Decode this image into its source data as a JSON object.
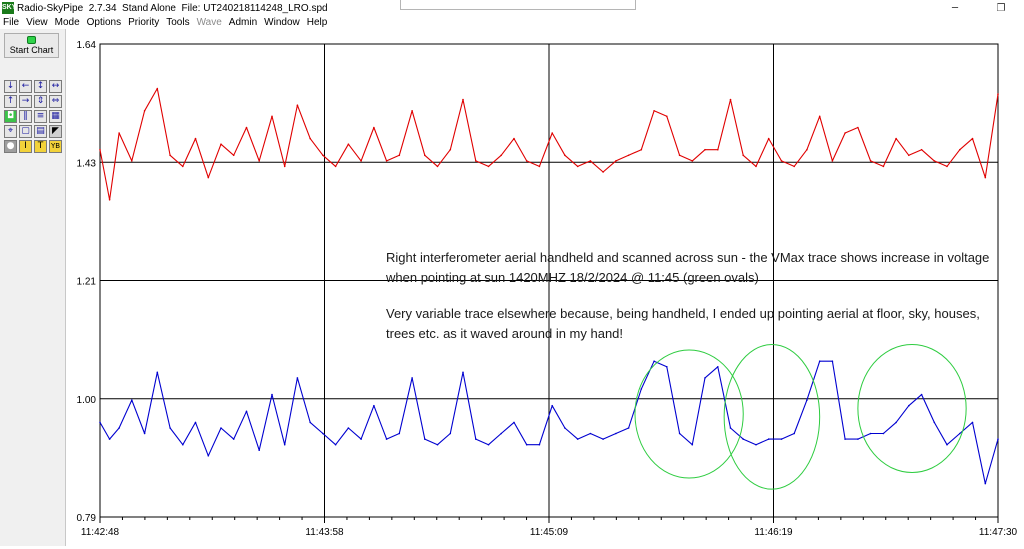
{
  "window": {
    "app_icon": "SKY",
    "title": "Radio-SkyPipe  2.7.34  Stand Alone  File: UT240218114248_LRO.spd",
    "minimize_icon": "minimize-icon",
    "restore_icon": "restore-icon",
    "minimize_glyph": "─",
    "restore_glyph": "❐"
  },
  "menu": [
    {
      "label": "File",
      "enabled": true
    },
    {
      "label": "View",
      "enabled": true
    },
    {
      "label": "Mode",
      "enabled": true
    },
    {
      "label": "Options",
      "enabled": true
    },
    {
      "label": "Priority",
      "enabled": true
    },
    {
      "label": "Tools",
      "enabled": true
    },
    {
      "label": "Wave",
      "enabled": false
    },
    {
      "label": "Admin",
      "enabled": true
    },
    {
      "label": "Window",
      "enabled": true
    },
    {
      "label": "Help",
      "enabled": true
    }
  ],
  "toolbar": {
    "start_chart_label": "Start Chart",
    "buttons": [
      {
        "name": "arrow-down-icon",
        "glyph": "↓",
        "style": ""
      },
      {
        "name": "arrow-left-icon",
        "glyph": "←",
        "style": ""
      },
      {
        "name": "arrows-vertical-icon",
        "glyph": "↕",
        "style": ""
      },
      {
        "name": "arrows-horizontal-icon",
        "glyph": "↔",
        "style": ""
      },
      {
        "name": "arrow-up-icon",
        "glyph": "↑",
        "style": ""
      },
      {
        "name": "arrow-right-icon",
        "glyph": "→",
        "style": ""
      },
      {
        "name": "compress-vertical-icon",
        "glyph": "⇕",
        "style": ""
      },
      {
        "name": "compress-horizontal-icon",
        "glyph": "⇔",
        "style": ""
      },
      {
        "name": "record-icon",
        "glyph": "◘",
        "style": "green"
      },
      {
        "name": "pause-icon",
        "glyph": "‖",
        "style": ""
      },
      {
        "name": "list-icon",
        "glyph": "≡",
        "style": ""
      },
      {
        "name": "grid-icon",
        "glyph": "▦",
        "style": ""
      },
      {
        "name": "crosshair-icon",
        "glyph": "⌖",
        "style": ""
      },
      {
        "name": "frame-icon",
        "glyph": "▢",
        "style": ""
      },
      {
        "name": "clipboard-icon",
        "glyph": "▤",
        "style": ""
      },
      {
        "name": "flag-icon",
        "glyph": "◤",
        "style": "dark"
      },
      {
        "name": "circle-icon",
        "glyph": "●",
        "style": "grey"
      },
      {
        "name": "info-icon",
        "glyph": "I",
        "style": "yellow"
      },
      {
        "name": "text-icon",
        "glyph": "T",
        "style": "yellow"
      },
      {
        "name": "yb-icon",
        "glyph": "YB",
        "style": "yellow"
      }
    ]
  },
  "chart_data": {
    "type": "line",
    "title": "",
    "xlabel": "",
    "ylabel": "",
    "y_ticks": [
      "1.64",
      "1.43",
      "1.21",
      "1.00",
      "0.79"
    ],
    "ylim": [
      0.79,
      1.64
    ],
    "x_ticks": [
      "11:42:48",
      "11:43:58",
      "11:45:09",
      "11:46:19",
      "11:47:30"
    ],
    "xlim_seconds_after_start": [
      0,
      282
    ],
    "grid": true,
    "series": [
      {
        "color": "#e00000",
        "x": [
          0,
          3,
          6,
          10,
          14,
          18,
          22,
          26,
          30,
          34,
          38,
          42,
          46,
          50,
          54,
          58,
          62,
          66,
          70,
          74,
          78,
          82,
          86,
          90,
          94,
          98,
          102,
          106,
          110,
          114,
          118,
          122,
          126,
          130,
          134,
          138,
          142,
          146,
          150,
          154,
          158,
          162,
          166,
          170,
          174,
          178,
          182,
          186,
          190,
          194,
          198,
          202,
          206,
          210,
          214,
          218,
          222,
          226,
          230,
          234,
          238,
          242,
          246,
          250,
          254,
          258,
          262,
          266,
          270,
          274,
          278,
          282
        ],
        "values": [
          1.45,
          1.36,
          1.48,
          1.43,
          1.52,
          1.56,
          1.44,
          1.42,
          1.47,
          1.4,
          1.46,
          1.44,
          1.49,
          1.43,
          1.51,
          1.42,
          1.53,
          1.47,
          1.44,
          1.42,
          1.46,
          1.43,
          1.49,
          1.43,
          1.44,
          1.52,
          1.44,
          1.42,
          1.45,
          1.54,
          1.43,
          1.42,
          1.44,
          1.47,
          1.43,
          1.42,
          1.48,
          1.44,
          1.42,
          1.43,
          1.41,
          1.43,
          1.44,
          1.45,
          1.52,
          1.51,
          1.44,
          1.43,
          1.45,
          1.45,
          1.54,
          1.44,
          1.42,
          1.47,
          1.43,
          1.42,
          1.45,
          1.51,
          1.43,
          1.48,
          1.49,
          1.43,
          1.42,
          1.47,
          1.44,
          1.45,
          1.43,
          1.42,
          1.45,
          1.47,
          1.4,
          1.55
        ]
      },
      {
        "color": "#0000d0",
        "x": [
          0,
          3,
          6,
          10,
          14,
          18,
          22,
          26,
          30,
          34,
          38,
          42,
          46,
          50,
          54,
          58,
          62,
          66,
          70,
          74,
          78,
          82,
          86,
          90,
          94,
          98,
          102,
          106,
          110,
          114,
          118,
          122,
          126,
          130,
          134,
          138,
          142,
          146,
          150,
          154,
          158,
          162,
          166,
          170,
          174,
          178,
          182,
          186,
          190,
          194,
          198,
          202,
          206,
          210,
          214,
          218,
          222,
          226,
          230,
          234,
          238,
          242,
          246,
          250,
          254,
          258,
          262,
          266,
          270,
          274,
          278,
          282
        ],
        "values": [
          0.96,
          0.93,
          0.95,
          1.0,
          0.94,
          1.05,
          0.95,
          0.92,
          0.96,
          0.9,
          0.95,
          0.93,
          0.98,
          0.91,
          1.01,
          0.92,
          1.04,
          0.96,
          0.94,
          0.92,
          0.95,
          0.93,
          0.99,
          0.93,
          0.94,
          1.04,
          0.93,
          0.92,
          0.94,
          1.05,
          0.93,
          0.92,
          0.94,
          0.96,
          0.92,
          0.92,
          0.99,
          0.95,
          0.93,
          0.94,
          0.93,
          0.94,
          0.95,
          1.02,
          1.07,
          1.06,
          0.94,
          0.92,
          1.04,
          1.06,
          0.95,
          0.93,
          0.92,
          0.93,
          0.93,
          0.94,
          1.0,
          1.07,
          1.07,
          0.93,
          0.93,
          0.94,
          0.94,
          0.96,
          0.99,
          1.01,
          0.96,
          0.92,
          0.94,
          0.96,
          0.85,
          0.93
        ]
      }
    ],
    "annotations": [
      {
        "shape": "ellipse",
        "color": "#2ecc40",
        "x_range_seconds": [
          168,
          202
        ],
        "y_range": [
          0.86,
          1.09
        ]
      },
      {
        "shape": "ellipse",
        "color": "#2ecc40",
        "x_range_seconds": [
          196,
          226
        ],
        "y_range": [
          0.84,
          1.1
        ]
      },
      {
        "shape": "ellipse",
        "color": "#2ecc40",
        "x_range_seconds": [
          238,
          272
        ],
        "y_range": [
          0.87,
          1.1
        ]
      }
    ]
  },
  "annotation_text": {
    "line1": "Right interferometer aerial handheld and scanned across sun -  the VMax trace shows increase in voltage when pointing at sun 1420MHZ 18/2/2024 @ 11:45 (green ovals)",
    "line2": "Very variable trace elsewhere because, being handheld, I ended up pointing aerial at floor, sky, houses, trees etc. as it waved around in my hand!"
  }
}
